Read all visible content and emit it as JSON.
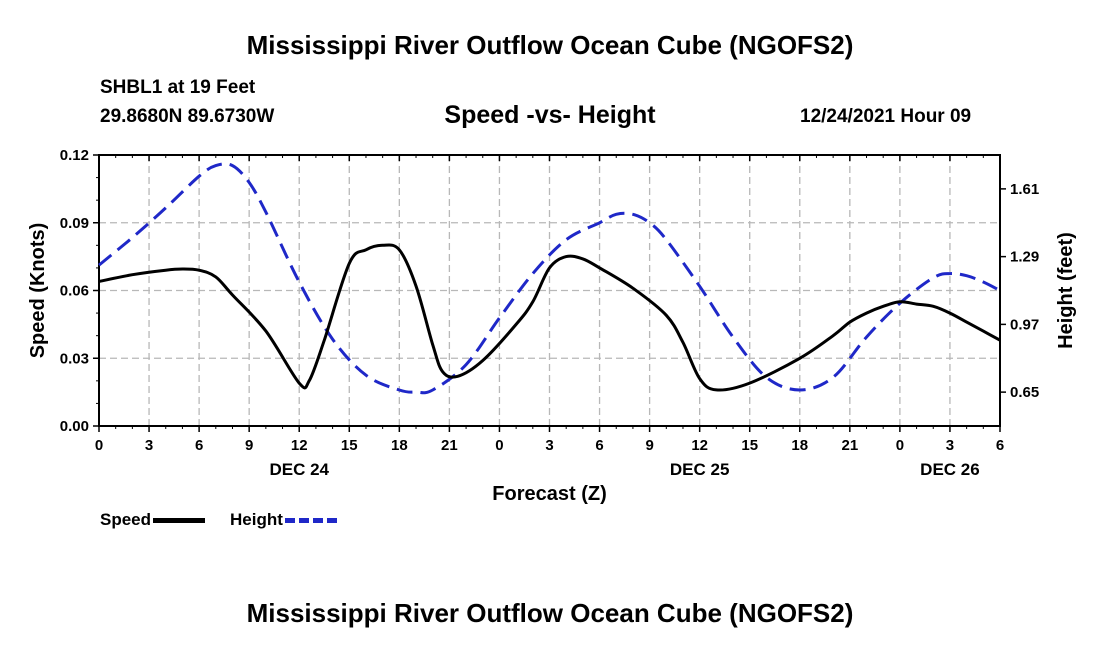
{
  "titles": {
    "main": "Mississippi River Outflow Ocean Cube (NGOFS2)",
    "subtitle": "Speed -vs- Height",
    "station": "SHBL1 at 19 Feet",
    "coords": "29.8680N  89.6730W",
    "datetime": "12/24/2021 Hour 09",
    "footer": "Mississippi River Outflow Ocean Cube (NGOFS2)"
  },
  "legend": {
    "speed": "Speed",
    "height": "Height"
  },
  "chart_data": {
    "type": "line",
    "xlabel": "Forecast (Z)",
    "ylabel_left": "Speed (Knots)",
    "ylabel_right": "Height (feet)",
    "x_range": [
      0,
      54
    ],
    "x_tick_values": [
      0,
      3,
      6,
      9,
      12,
      15,
      18,
      21,
      24,
      27,
      30,
      33,
      36,
      39,
      42,
      45,
      48,
      51,
      54
    ],
    "x_tick_labels": [
      "0",
      "3",
      "6",
      "9",
      "12",
      "15",
      "18",
      "21",
      "0",
      "3",
      "6",
      "9",
      "12",
      "15",
      "18",
      "21",
      "0",
      "3",
      "6"
    ],
    "date_labels": [
      {
        "x": 12,
        "label": "DEC 24"
      },
      {
        "x": 36,
        "label": "DEC 25"
      },
      {
        "x": 51,
        "label": "DEC 26"
      }
    ],
    "ylim_left": [
      0,
      0.12
    ],
    "y_ticks_left": [
      "0.00",
      "0.03",
      "0.06",
      "0.09",
      "0.12"
    ],
    "ylim_right": [
      0.49,
      1.77
    ],
    "y_ticks_right": [
      "0.65",
      "0.97",
      "1.29",
      "1.61"
    ],
    "grid": true,
    "series": [
      {
        "name": "Speed",
        "axis": "left",
        "color": "#000000",
        "x": [
          0,
          2,
          4,
          5,
          6,
          7,
          8,
          10,
          12,
          12.6,
          13.5,
          15,
          16,
          17,
          18,
          19,
          20,
          20.6,
          21.5,
          23,
          25,
          26,
          27,
          28,
          29,
          30,
          32,
          34,
          35,
          36,
          37,
          39,
          42,
          44,
          45,
          46,
          47,
          48,
          49,
          50,
          51,
          52,
          53,
          54
        ],
        "values": [
          0.064,
          0.067,
          0.069,
          0.0695,
          0.069,
          0.066,
          0.058,
          0.042,
          0.019,
          0.02,
          0.038,
          0.072,
          0.078,
          0.08,
          0.078,
          0.062,
          0.036,
          0.024,
          0.022,
          0.029,
          0.045,
          0.055,
          0.07,
          0.075,
          0.074,
          0.07,
          0.061,
          0.049,
          0.037,
          0.021,
          0.016,
          0.019,
          0.03,
          0.04,
          0.046,
          0.05,
          0.053,
          0.055,
          0.054,
          0.053,
          0.05,
          0.046,
          0.042,
          0.038
        ]
      },
      {
        "name": "Height",
        "axis": "right",
        "color": "#1f28c8",
        "x": [
          0,
          2,
          4,
          6,
          7,
          8,
          9,
          10,
          12,
          14,
          16,
          18,
          19,
          20,
          22,
          24,
          26,
          28,
          30,
          31,
          32,
          33,
          34,
          36,
          38,
          40,
          42,
          44,
          46,
          48,
          50,
          51,
          52,
          53,
          54
        ],
        "values": [
          1.25,
          1.38,
          1.52,
          1.67,
          1.72,
          1.72,
          1.64,
          1.5,
          1.17,
          0.9,
          0.73,
          0.66,
          0.65,
          0.66,
          0.78,
          1.0,
          1.21,
          1.37,
          1.45,
          1.49,
          1.49,
          1.45,
          1.37,
          1.15,
          0.91,
          0.72,
          0.66,
          0.72,
          0.91,
          1.07,
          1.19,
          1.21,
          1.2,
          1.17,
          1.13
        ]
      }
    ]
  }
}
